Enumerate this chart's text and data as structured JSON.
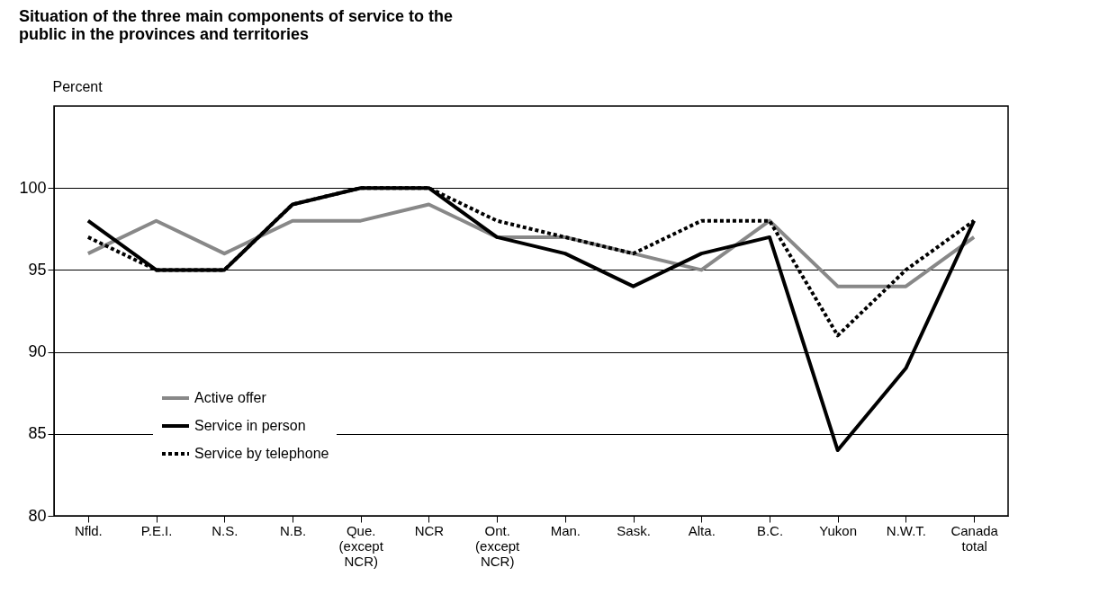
{
  "chart_data": {
    "type": "line",
    "title": "Situation of the three main components of service to the public in the provinces and territories",
    "ylabel": "Percent",
    "categories": [
      "Nfld.",
      "P.E.I.",
      "N.S.",
      "N.B.",
      "Que. (except NCR)",
      "NCR",
      "Ont. (except NCR)",
      "Man.",
      "Sask.",
      "Alta.",
      "B.C.",
      "Yukon",
      "N.W.T.",
      "Canada total"
    ],
    "series": [
      {
        "name": "Active offer",
        "color": "#888888",
        "line_style": "solid",
        "values": [
          96,
          98,
          96,
          98,
          98,
          99,
          97,
          97,
          96,
          95,
          98,
          94,
          94,
          97
        ]
      },
      {
        "name": "Service in person",
        "color": "#000000",
        "line_style": "solid",
        "values": [
          98,
          95,
          95,
          99,
          100,
          100,
          97,
          96,
          94,
          96,
          97,
          84,
          89,
          98
        ]
      },
      {
        "name": "Service by telephone",
        "color": "#000000",
        "line_style": "dotted",
        "values": [
          97,
          95,
          95,
          99,
          100,
          100,
          98,
          97,
          96,
          98,
          98,
          91,
          95,
          98
        ]
      }
    ],
    "ylim": [
      80,
      105
    ],
    "yticks": [
      80,
      85,
      90,
      95,
      100
    ],
    "grid": "y",
    "legend": "bottom left"
  }
}
